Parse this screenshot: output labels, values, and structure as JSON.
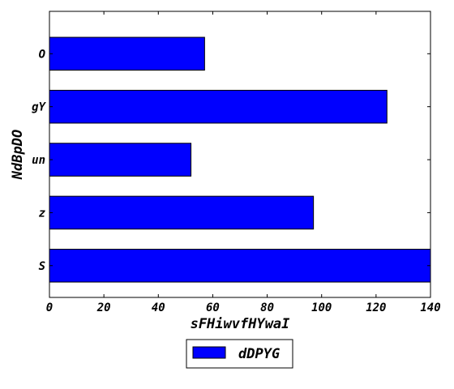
{
  "chart_data": {
    "type": "bar",
    "orientation": "horizontal",
    "categories": [
      "S",
      "z",
      "un",
      "gY",
      "O"
    ],
    "series": [
      {
        "name": "dDPYG",
        "values": [
          140,
          97,
          52,
          124,
          57
        ],
        "color": "#0000ff"
      }
    ],
    "xlabel": "sFHiwvfHYwaI",
    "ylabel": "NdBpDO",
    "xlim": [
      0,
      140
    ],
    "xticks": [
      0,
      20,
      40,
      60,
      80,
      100,
      120,
      140
    ],
    "grid": false,
    "legend_position": "bottom-center"
  }
}
